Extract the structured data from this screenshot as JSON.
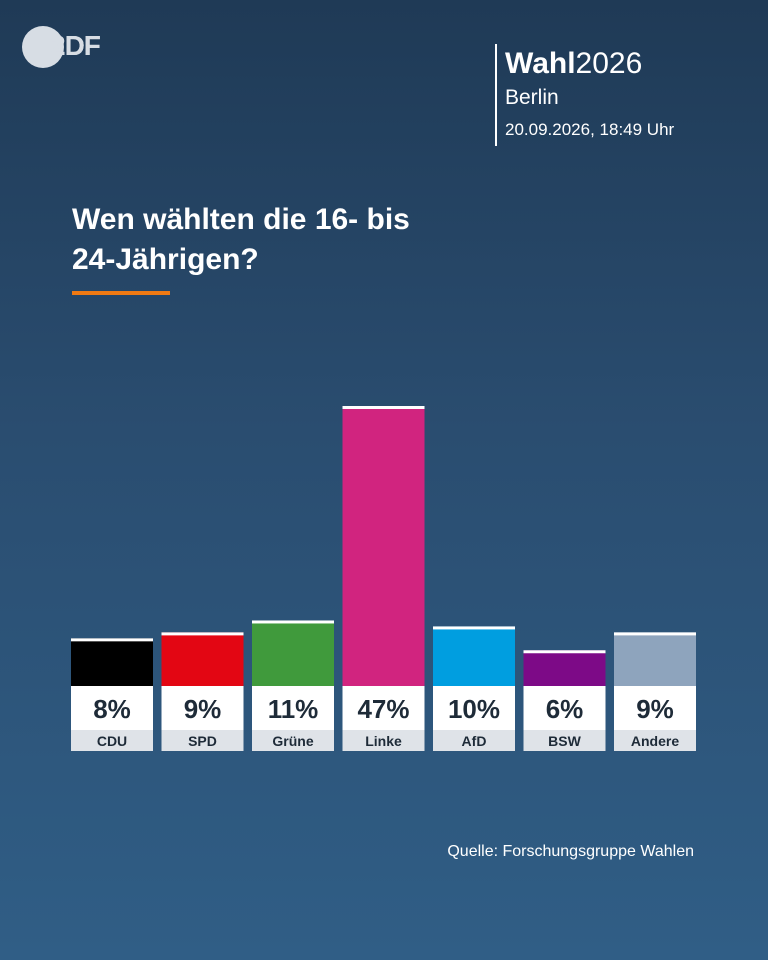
{
  "brand": {
    "logo_text": "2DF"
  },
  "header": {
    "wahl_bold": "Wahl",
    "wahl_year": "2026",
    "city": "Berlin",
    "datetime": "20.09.2026, 18:49 Uhr"
  },
  "headline": {
    "line1": "Wen wählten die 16- bis",
    "line2": "24-Jährigen?"
  },
  "source": "Quelle: Forschungsgruppe Wahlen",
  "accent_color": "#f07a13",
  "chart_data": {
    "type": "bar",
    "categories": [
      "CDU",
      "SPD",
      "Grüne",
      "Linke",
      "AfD",
      "BSW",
      "Andere"
    ],
    "values": [
      8,
      9,
      11,
      47,
      10,
      6,
      9
    ],
    "value_labels": [
      "8%",
      "9%",
      "11%",
      "47%",
      "10%",
      "6%",
      "9%"
    ],
    "colors": [
      "#000000",
      "#e30613",
      "#409a3c",
      "#d1247f",
      "#009ee0",
      "#7d0a87",
      "#8ea4bd"
    ],
    "title": "Wen wählten die 16- bis 24-Jährigen?",
    "unit": "%",
    "ylim": [
      0,
      47
    ],
    "grid": false
  }
}
